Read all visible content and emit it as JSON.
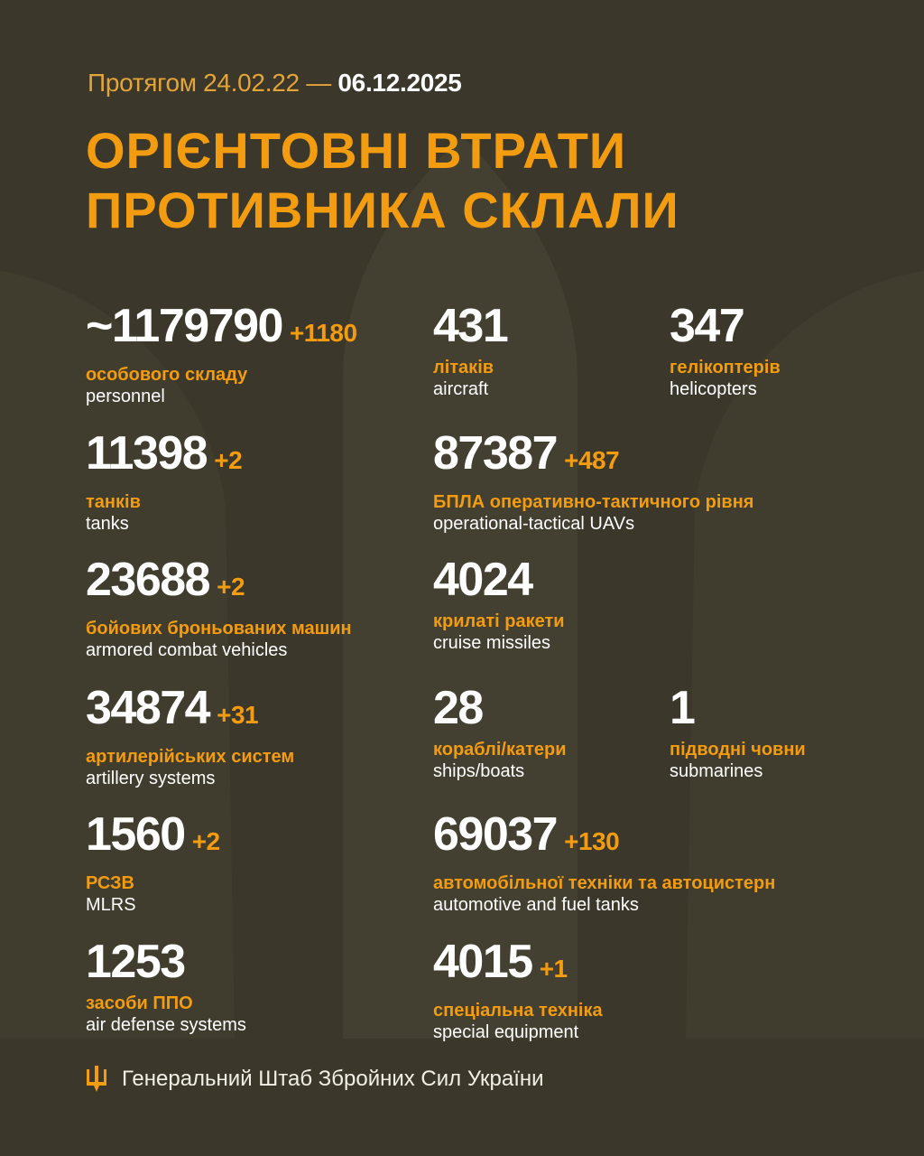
{
  "header": {
    "period_prefix": "Протягом 24.02.22 —",
    "period_end": "06.12.2025",
    "title_line1": "ОРІЄНТОВНІ ВТРАТИ",
    "title_line2": "ПРОТИВНИКА СКЛАЛИ"
  },
  "colors": {
    "background": "#3b382b",
    "accent": "#f39c0f",
    "text": "#ffffff"
  },
  "stats": [
    {
      "value": "~1179790",
      "delta": "+1180",
      "ua": "особового складу",
      "en": "personnel"
    },
    {
      "value": "431",
      "delta": "",
      "ua": "літаків",
      "en": "aircraft"
    },
    {
      "value": "347",
      "delta": "",
      "ua": "гелікоптерів",
      "en": "helicopters"
    },
    {
      "value": "11398",
      "delta": "+2",
      "ua": "танків",
      "en": "tanks"
    },
    {
      "value": "87387",
      "delta": "+487",
      "ua": "БПЛА оперативно-тактичного рівня",
      "en": "operational-tactical UAVs"
    },
    {
      "value": "23688",
      "delta": "+2",
      "ua": "бойових броньованих машин",
      "en": "armored combat vehicles"
    },
    {
      "value": "4024",
      "delta": "",
      "ua": "крилаті ракети",
      "en": "cruise missiles"
    },
    {
      "value": "34874",
      "delta": "+31",
      "ua": "артилерійських систем",
      "en": "artillery systems"
    },
    {
      "value": "28",
      "delta": "",
      "ua": "кораблі/катери",
      "en": "ships/boats"
    },
    {
      "value": "1",
      "delta": "",
      "ua": "підводні човни",
      "en": "submarines"
    },
    {
      "value": "1560",
      "delta": "+2",
      "ua": "РСЗВ",
      "en": "MLRS"
    },
    {
      "value": "69037",
      "delta": "+130",
      "ua": "автомобільної техніки та автоцистерн",
      "en": "automotive and fuel tanks"
    },
    {
      "value": "1253",
      "delta": "",
      "ua": "засоби ППО",
      "en": "air defense systems"
    },
    {
      "value": "4015",
      "delta": "+1",
      "ua": "спеціальна техніка",
      "en": "special equipment"
    }
  ],
  "footer": {
    "icon": "trident-icon",
    "text": "Генеральний Штаб Збройних Сил України"
  }
}
